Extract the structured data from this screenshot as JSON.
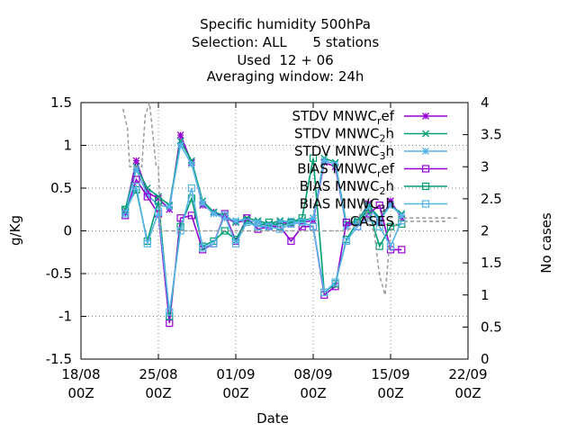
{
  "chart_data": {
    "type": "line",
    "title_lines": [
      "Specific humidity 500hPa",
      "Selection: ALL      5 stations",
      "Used  12 + 06",
      "Averaging window: 24h"
    ],
    "xlabel": "Date",
    "ylabel": "g/Kg",
    "y2label": "No cases",
    "xlim": [
      0,
      35
    ],
    "ylim": [
      -1.5,
      1.5
    ],
    "y2lim": [
      0,
      4
    ],
    "x_ticks": [
      {
        "x": 0,
        "l1": "18/08",
        "l2": "00Z"
      },
      {
        "x": 7,
        "l1": "25/08",
        "l2": "00Z"
      },
      {
        "x": 14,
        "l1": "01/09",
        "l2": "00Z"
      },
      {
        "x": 21,
        "l1": "08/09",
        "l2": "00Z"
      },
      {
        "x": 28,
        "l1": "15/09",
        "l2": "00Z"
      },
      {
        "x": 35,
        "l1": "22/09",
        "l2": "00Z"
      }
    ],
    "y_ticks": [
      -1.5,
      -1,
      -0.5,
      0,
      0.5,
      1,
      1.5
    ],
    "y2_ticks": [
      0,
      0.5,
      1,
      1.5,
      2,
      2.5,
      3,
      3.5,
      4
    ],
    "legend_position": "top-right",
    "series": [
      {
        "name": "STDV MNWC",
        "sub": "r",
        "tail": "ef",
        "color": "#9400d3",
        "marker": "star",
        "axis": "y",
        "x": [
          4,
          5,
          6,
          7,
          8,
          9,
          10,
          11,
          12,
          13,
          14,
          15,
          16,
          17,
          18,
          19,
          20,
          21,
          22,
          23,
          24,
          25,
          26,
          27,
          28,
          29
        ],
        "y": [
          0.22,
          0.82,
          0.45,
          0.38,
          0.25,
          1.12,
          0.8,
          0.3,
          0.22,
          0.15,
          0.1,
          0.12,
          0.1,
          0.05,
          0.1,
          0.08,
          0.1,
          0.12,
          0.8,
          0.75,
          0.05,
          0.1,
          0.32,
          0.1,
          0.35,
          0.15
        ]
      },
      {
        "name": "STDV MNWC",
        "sub": "2",
        "tail": "h",
        "color": "#009e73",
        "marker": "x",
        "axis": "y",
        "x": [
          4,
          5,
          6,
          7,
          8,
          9,
          10,
          11,
          12,
          13,
          14,
          15,
          16,
          17,
          18,
          19,
          20,
          21,
          22,
          23,
          24,
          25,
          26,
          27,
          28,
          29
        ],
        "y": [
          0.25,
          0.75,
          0.5,
          0.4,
          0.3,
          1.05,
          0.82,
          0.35,
          0.22,
          0.18,
          0.1,
          0.15,
          0.12,
          0.08,
          0.12,
          0.1,
          0.12,
          0.15,
          0.85,
          0.8,
          0.08,
          0.12,
          0.3,
          0.15,
          0.3,
          0.2
        ]
      },
      {
        "name": "STDV MNWC",
        "sub": "3",
        "tail": "h",
        "color": "#56b4e9",
        "marker": "star",
        "axis": "y",
        "x": [
          4,
          5,
          6,
          7,
          8,
          9,
          10,
          11,
          12,
          13,
          14,
          15,
          16,
          17,
          18,
          19,
          20,
          21,
          22,
          23,
          24,
          25,
          26,
          27,
          28,
          29
        ],
        "y": [
          0.2,
          0.72,
          0.42,
          0.3,
          0.28,
          1.0,
          0.78,
          0.32,
          0.2,
          0.15,
          0.12,
          0.12,
          0.1,
          0.06,
          0.1,
          0.12,
          0.1,
          0.15,
          0.82,
          0.78,
          0.05,
          0.1,
          0.28,
          0.12,
          0.3,
          0.18
        ]
      },
      {
        "name": "BIAS MNWC",
        "sub": "r",
        "tail": "ef",
        "color": "#9400d3",
        "marker": "box",
        "axis": "y",
        "x": [
          4,
          5,
          6,
          7,
          8,
          9,
          10,
          11,
          12,
          13,
          14,
          15,
          16,
          17,
          18,
          19,
          20,
          21,
          22,
          23,
          24,
          25,
          26,
          27,
          28,
          29
        ],
        "y": [
          0.18,
          0.6,
          0.4,
          0.2,
          -1.08,
          0.15,
          0.18,
          -0.22,
          -0.15,
          0.2,
          -0.12,
          0.15,
          0.02,
          0.05,
          0.05,
          -0.12,
          0.05,
          0.05,
          -0.75,
          -0.65,
          0.1,
          0.05,
          0.2,
          0.3,
          -0.22,
          -0.22
        ]
      },
      {
        "name": "BIAS MNWC",
        "sub": "2",
        "tail": "h",
        "color": "#009e73",
        "marker": "box",
        "axis": "y",
        "x": [
          4,
          5,
          6,
          7,
          8,
          9,
          10,
          11,
          12,
          13,
          14,
          15,
          16,
          17,
          18,
          19,
          20,
          21,
          22,
          23,
          24,
          25,
          26,
          27,
          28,
          29
        ],
        "y": [
          0.25,
          0.48,
          -0.12,
          0.35,
          -1.0,
          0.05,
          0.38,
          -0.18,
          -0.12,
          0.0,
          -0.1,
          0.12,
          0.05,
          0.1,
          0.05,
          0.1,
          0.15,
          0.85,
          -0.72,
          -0.62,
          -0.1,
          0.1,
          0.25,
          -0.18,
          0.05,
          0.08
        ]
      },
      {
        "name": "BIAS MNWC",
        "sub": "3",
        "tail": "h",
        "color": "#56b4e9",
        "marker": "box",
        "axis": "y",
        "x": [
          4,
          5,
          6,
          7,
          8,
          9,
          10,
          11,
          12,
          13,
          14,
          15,
          16,
          17,
          18,
          19,
          20,
          21,
          22,
          23,
          24,
          25,
          26,
          27,
          28,
          29
        ],
        "y": [
          0.2,
          0.52,
          -0.15,
          0.22,
          -0.95,
          0.0,
          0.5,
          -0.2,
          -0.15,
          0.18,
          -0.15,
          0.1,
          0.05,
          0.05,
          0.02,
          0.08,
          0.1,
          0.05,
          -0.72,
          -0.6,
          -0.12,
          0.05,
          0.15,
          0.05,
          -0.18,
          0.12
        ]
      },
      {
        "name": "CASES",
        "sub": "",
        "tail": "",
        "color": "#999999",
        "marker": "none",
        "axis": "y2",
        "dashed": true,
        "x": [
          3.8,
          4.2,
          4.4,
          5.5,
          5.8,
          6.2,
          6.8,
          7.0,
          7.2,
          8,
          10,
          12,
          14,
          16,
          18,
          20,
          21,
          22,
          23,
          24,
          25,
          25.6,
          26,
          26.5,
          27,
          27.5,
          28,
          29,
          30,
          31,
          32,
          33,
          34
        ],
        "y": [
          3.9,
          3.6,
          3.0,
          3.0,
          3.8,
          4.0,
          3.0,
          3.0,
          2.0,
          2.0,
          2.0,
          2.0,
          2.0,
          2.0,
          2.0,
          2.0,
          2.0,
          2.0,
          2.0,
          2.0,
          2.1,
          2.5,
          2.1,
          2.0,
          1.3,
          1.0,
          2.0,
          2.2,
          2.2,
          2.2,
          2.2,
          2.2,
          2.2
        ]
      }
    ]
  }
}
